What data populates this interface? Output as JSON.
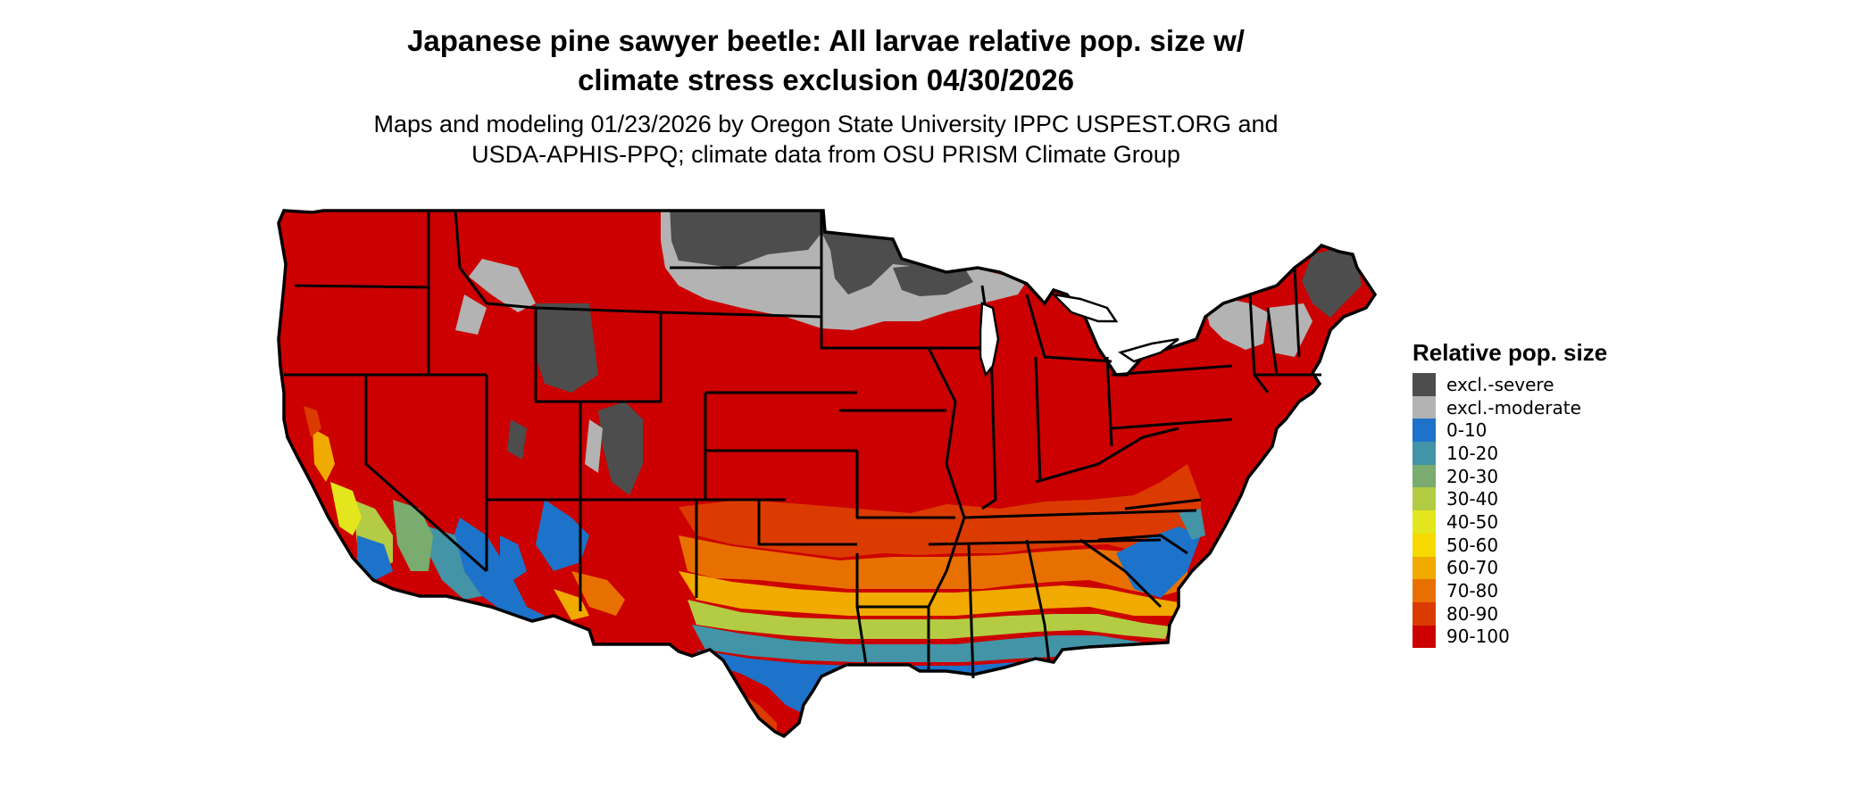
{
  "title_line1": "Japanese pine sawyer beetle: All larvae relative pop. size w/",
  "title_line2": "climate stress exclusion 04/30/2026",
  "subtitle_line1": "Maps and modeling 01/23/2026 by Oregon State University IPPC USPEST.ORG and",
  "subtitle_line2": "USDA-APHIS-PPQ; climate data from OSU PRISM Climate Group",
  "legend": {
    "title": "Relative pop. size",
    "items": [
      {
        "label": "excl.-severe",
        "color": "#4d4d4d"
      },
      {
        "label": "excl.-moderate",
        "color": "#b3b3b3"
      },
      {
        "label": "0-10",
        "color": "#1c73c9"
      },
      {
        "label": "10-20",
        "color": "#4294a6"
      },
      {
        "label": "20-30",
        "color": "#7aab6f"
      },
      {
        "label": "30-40",
        "color": "#b3cc43"
      },
      {
        "label": "40-50",
        "color": "#e3e61c"
      },
      {
        "label": "50-60",
        "color": "#f5d900"
      },
      {
        "label": "60-70",
        "color": "#f0aa00"
      },
      {
        "label": "70-80",
        "color": "#e87000"
      },
      {
        "label": "80-90",
        "color": "#db3b00"
      },
      {
        "label": "90-100",
        "color": "#cc0000"
      }
    ]
  },
  "map": {
    "region": "conterminous United States",
    "boundaries": "state outlines",
    "dominant_class": "90-100"
  }
}
